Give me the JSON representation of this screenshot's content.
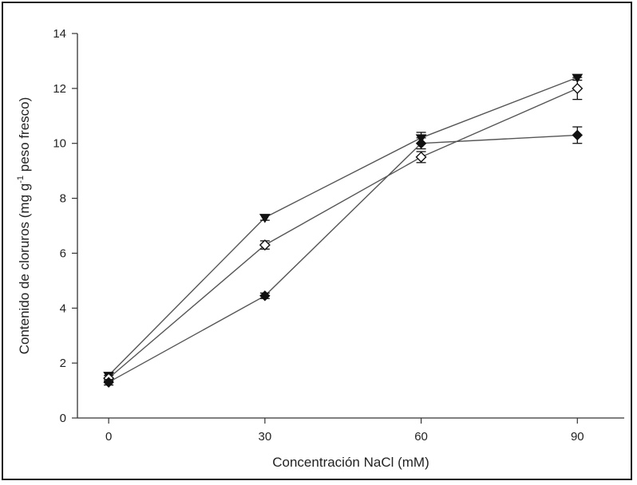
{
  "chart_data": {
    "type": "line",
    "title": "",
    "xlabel": "Concentración NaCl (mM)",
    "ylabel": {
      "pre": "Contenido de cloruros (mg g",
      "sup": "-1",
      "post": " peso fresco)"
    },
    "x": [
      0,
      30,
      60,
      90
    ],
    "x_ticks": [
      "0",
      "30",
      "60",
      "90"
    ],
    "xlim": [
      -6,
      99
    ],
    "ylim": [
      0,
      14
    ],
    "y_ticks": [
      "0",
      "2",
      "4",
      "6",
      "8",
      "10",
      "12",
      "14"
    ],
    "grid": false,
    "legend": "none",
    "series": [
      {
        "marker": "filled-triangle-down",
        "values": [
          1.55,
          7.3,
          10.2,
          12.4
        ],
        "errors": [
          0.1,
          0.1,
          0.2,
          0.1
        ]
      },
      {
        "marker": "open-diamond",
        "values": [
          1.45,
          6.3,
          9.5,
          12.0
        ],
        "errors": [
          0.1,
          0.15,
          0.2,
          0.4
        ]
      },
      {
        "marker": "filled-diamond",
        "values": [
          1.3,
          4.45,
          10.0,
          10.3
        ],
        "errors": [
          0.1,
          0.1,
          0.2,
          0.3
        ]
      }
    ],
    "colors": {
      "line": "#555555",
      "marker": "#111111",
      "axis": "#333333"
    }
  }
}
